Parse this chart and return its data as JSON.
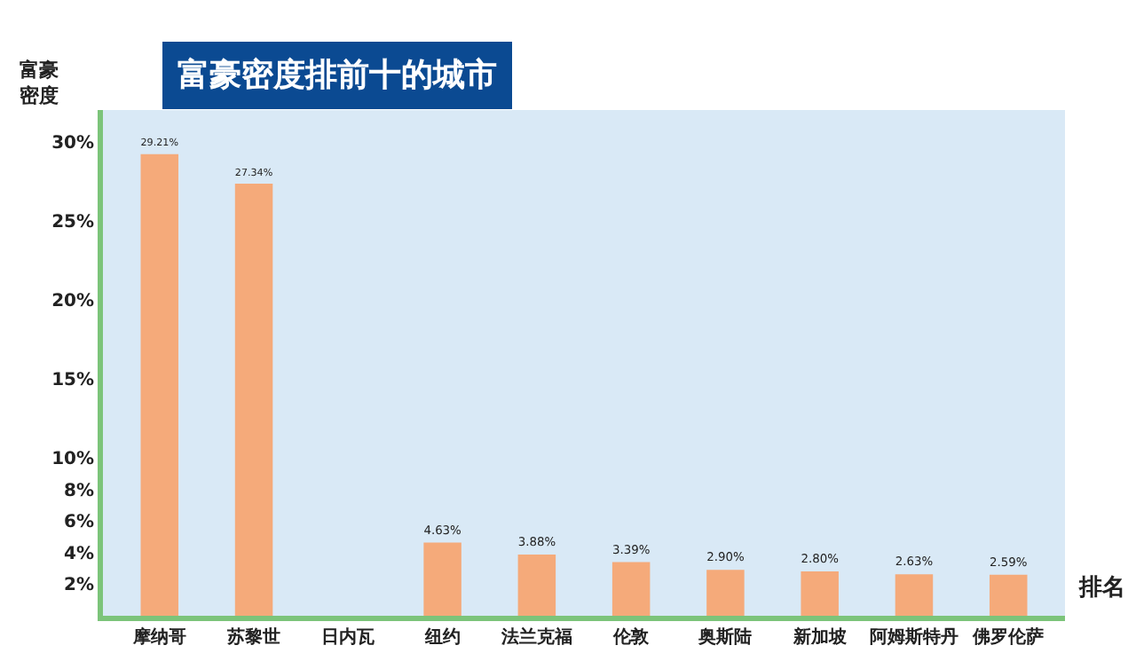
{
  "chart_data": {
    "type": "bar",
    "title": "富豪密度排前十的城市",
    "ylabel": "富豪密度",
    "xlabel": "排名",
    "categories": [
      "摩纳哥",
      "苏黎世",
      "日内瓦",
      "纽约",
      "法兰克福",
      "伦敦",
      "奥斯陆",
      "新加坡",
      "阿姆斯特丹",
      "佛罗伦萨"
    ],
    "values": [
      29.21,
      27.34,
      null,
      4.63,
      3.88,
      3.39,
      2.9,
      2.8,
      2.63,
      2.59
    ],
    "value_labels": [
      "29.21%",
      "27.34%",
      null,
      "4.63%",
      "3.88%",
      "3.39%",
      "2.90%",
      "2.80%",
      "2.63%",
      "2.59%"
    ],
    "color": "#f5aa7a",
    "ylim": [
      0,
      32
    ],
    "yticks": [
      {
        "value": 2,
        "label": "2%"
      },
      {
        "value": 4,
        "label": "4%"
      },
      {
        "value": 6,
        "label": "6%"
      },
      {
        "value": 8,
        "label": "8%"
      },
      {
        "value": 10,
        "label": "10%"
      },
      {
        "value": 15,
        "label": "15%"
      },
      {
        "value": 20,
        "label": "20%"
      },
      {
        "value": 25,
        "label": "25%"
      },
      {
        "value": 30,
        "label": "30%"
      }
    ],
    "grid": false,
    "legend": false
  }
}
